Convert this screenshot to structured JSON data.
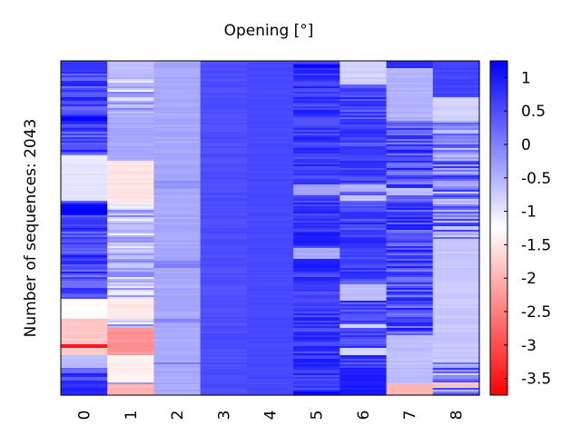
{
  "chart_data": {
    "type": "heatmap",
    "title": "Opening [°]",
    "xlabel": "",
    "ylabel": "Number of sequences: 2043",
    "x_ticks": [
      "0",
      "1",
      "2",
      "3",
      "4",
      "5",
      "6",
      "7",
      "8"
    ],
    "rows": 2043,
    "colorbar": {
      "range": [
        -3.75,
        1.25
      ],
      "ticks": [
        "1",
        "0.5",
        "0",
        "-0.5",
        "-1",
        "-1.5",
        "-2",
        "-2.5",
        "-3",
        "-3.5"
      ],
      "tick_values": [
        1,
        0.5,
        0,
        -0.5,
        -1,
        -1.5,
        -2,
        -2.5,
        -3,
        -3.5
      ],
      "colors": {
        "low": "#ff0000",
        "mid": "#ffffff",
        "high": "#0000ff",
        "mid_value": -1.25
      }
    },
    "columns": [
      {
        "label": "0",
        "base": 0.55,
        "noise": 0.5,
        "segments": [
          {
            "from": 0.0,
            "to": 0.03,
            "value": 0.7
          },
          {
            "from": 0.17,
            "to": 0.18,
            "value": 1.2
          },
          {
            "from": 0.28,
            "to": 0.42,
            "value": -1.0
          },
          {
            "from": 0.43,
            "to": 0.46,
            "value": 1.2
          },
          {
            "from": 0.71,
            "to": 0.77,
            "value": -1.3
          },
          {
            "from": 0.77,
            "to": 0.85,
            "value": -1.8
          },
          {
            "from": 0.85,
            "to": 0.86,
            "value": -3.6
          },
          {
            "from": 0.86,
            "to": 0.88,
            "value": -1.8
          },
          {
            "from": 0.88,
            "to": 0.92,
            "value": -0.6
          },
          {
            "from": 0.98,
            "to": 1.0,
            "value": 0.9
          }
        ]
      },
      {
        "label": "1",
        "base": -0.6,
        "noise": 0.6,
        "segments": [
          {
            "from": 0.0,
            "to": 0.05,
            "value": -0.6
          },
          {
            "from": 0.17,
            "to": 0.3,
            "value": -0.4
          },
          {
            "from": 0.3,
            "to": 0.43,
            "value": -1.5
          },
          {
            "from": 0.71,
            "to": 0.77,
            "value": -1.5
          },
          {
            "from": 0.8,
            "to": 0.88,
            "value": -2.3
          },
          {
            "from": 0.88,
            "to": 0.96,
            "value": -1.4
          },
          {
            "from": 0.97,
            "to": 1.0,
            "value": -2.0
          }
        ]
      },
      {
        "label": "2",
        "base": -0.4,
        "noise": 0.08,
        "segments": [
          {
            "from": 0.36,
            "to": 0.38,
            "value": -0.2
          },
          {
            "from": 0.6,
            "to": 0.62,
            "value": 0.0
          },
          {
            "from": 0.77,
            "to": 0.78,
            "value": 0.0
          },
          {
            "from": 0.9,
            "to": 0.91,
            "value": 0.1
          }
        ]
      },
      {
        "label": "3",
        "base": 0.5,
        "noise": 0.08,
        "segments": []
      },
      {
        "label": "4",
        "base": 0.55,
        "noise": 0.04,
        "segments": []
      },
      {
        "label": "5",
        "base": 0.7,
        "noise": 0.3,
        "segments": [
          {
            "from": 0.01,
            "to": 0.02,
            "value": 1.2
          },
          {
            "from": 0.37,
            "to": 0.4,
            "value": -0.3
          },
          {
            "from": 0.51,
            "to": 0.55,
            "value": 1.0
          },
          {
            "from": 0.56,
            "to": 0.59,
            "value": -0.4
          },
          {
            "from": 0.6,
            "to": 0.63,
            "value": 1.0
          },
          {
            "from": 0.99,
            "to": 1.0,
            "value": 1.2
          }
        ]
      },
      {
        "label": "6",
        "base": 0.6,
        "noise": 0.35,
        "segments": [
          {
            "from": 0.0,
            "to": 0.07,
            "value": -0.8
          },
          {
            "from": 0.37,
            "to": 0.39,
            "value": -0.5
          },
          {
            "from": 0.4,
            "to": 0.42,
            "value": -0.7
          },
          {
            "from": 0.67,
            "to": 0.72,
            "value": -0.6
          },
          {
            "from": 0.79,
            "to": 0.8,
            "value": -0.9
          },
          {
            "from": 0.86,
            "to": 0.88,
            "value": -0.8
          },
          {
            "from": 0.92,
            "to": 1.0,
            "value": 1.0
          }
        ]
      },
      {
        "label": "7",
        "base": 0.5,
        "noise": 0.55,
        "segments": [
          {
            "from": 0.0,
            "to": 0.02,
            "value": 0.8
          },
          {
            "from": 0.02,
            "to": 0.18,
            "value": -0.5
          },
          {
            "from": 0.38,
            "to": 0.4,
            "value": -0.6
          },
          {
            "from": 0.82,
            "to": 0.97,
            "value": -0.6
          },
          {
            "from": 0.97,
            "to": 1.0,
            "value": -2.0
          }
        ]
      },
      {
        "label": "8",
        "base": 0.0,
        "noise": 0.8,
        "segments": [
          {
            "from": 0.0,
            "to": 0.11,
            "value": 0.6
          },
          {
            "from": 0.11,
            "to": 0.18,
            "value": -0.8
          },
          {
            "from": 0.53,
            "to": 0.9,
            "value": -0.7
          },
          {
            "from": 0.96,
            "to": 0.98,
            "value": -1.8
          }
        ]
      }
    ]
  }
}
